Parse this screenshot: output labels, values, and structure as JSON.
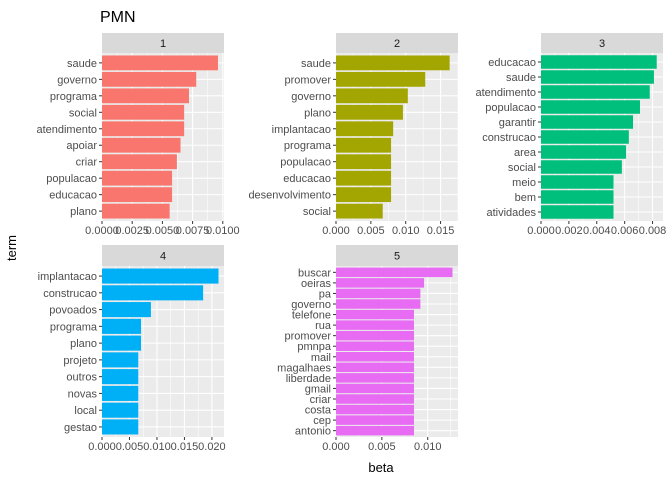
{
  "chart_data": {
    "type": "bar",
    "orientation": "horizontal",
    "title": "PMN",
    "xlabel": "beta",
    "ylabel": "term",
    "facet_layout": "3 columns x 2 rows, free scales",
    "grid": true,
    "legend": "none",
    "panels": [
      {
        "facet": "1",
        "color": "#F8766D",
        "xlim": [
          0,
          0.0101
        ],
        "xticks": [
          "0.0000",
          "0.0025",
          "0.0050",
          "0.0075",
          "0.0100"
        ],
        "xtick_values": [
          0,
          0.0025,
          0.005,
          0.0075,
          0.01
        ],
        "categories": [
          "saude",
          "governo",
          "programa",
          "social",
          "atendimento",
          "apoiar",
          "criar",
          "populacao",
          "educacao",
          "plano"
        ],
        "values": [
          0.0096,
          0.0078,
          0.0072,
          0.0068,
          0.0068,
          0.0065,
          0.0062,
          0.0058,
          0.0058,
          0.0056
        ]
      },
      {
        "facet": "2",
        "color": "#A3A500",
        "xlim": [
          0,
          0.0175
        ],
        "xticks": [
          "0.000",
          "0.005",
          "0.010",
          "0.015"
        ],
        "xtick_values": [
          0,
          0.005,
          0.01,
          0.015
        ],
        "categories": [
          "saude",
          "promover",
          "governo",
          "plano",
          "implantacao",
          "programa",
          "populacao",
          "educacao",
          "desenvolvimento",
          "social"
        ],
        "values": [
          0.0163,
          0.0128,
          0.0103,
          0.0096,
          0.0082,
          0.0079,
          0.0079,
          0.0079,
          0.0079,
          0.0067
        ]
      },
      {
        "facet": "3",
        "color": "#00BF7D",
        "xlim": [
          0,
          0.00875
        ],
        "xticks": [
          "0.000",
          "0.002",
          "0.004",
          "0.006",
          "0.008"
        ],
        "xtick_values": [
          0,
          0.002,
          0.004,
          0.006,
          0.008
        ],
        "categories": [
          "educacao",
          "saude",
          "atendimento",
          "populacao",
          "garantir",
          "construcao",
          "area",
          "social",
          "meio",
          "bem",
          "atividades"
        ],
        "values": [
          0.0083,
          0.0081,
          0.0078,
          0.0071,
          0.0066,
          0.0063,
          0.0061,
          0.0058,
          0.0052,
          0.0052,
          0.0052
        ]
      },
      {
        "facet": "4",
        "color": "#00B0F6",
        "xlim": [
          0,
          0.0222
        ],
        "xticks": [
          "0.000",
          "0.005",
          "0.010",
          "0.015",
          "0.020"
        ],
        "xtick_values": [
          0,
          0.005,
          0.01,
          0.015,
          0.02
        ],
        "categories": [
          "implantacao",
          "construcao",
          "povoados",
          "programa",
          "plano",
          "projeto",
          "outros",
          "novas",
          "local",
          "gestao"
        ],
        "values": [
          0.0212,
          0.0184,
          0.0089,
          0.0071,
          0.0071,
          0.0066,
          0.0066,
          0.0066,
          0.0066,
          0.0066
        ]
      },
      {
        "facet": "5",
        "color": "#E76BF3",
        "xlim": [
          0,
          0.0133
        ],
        "xticks": [
          "0.000",
          "0.005",
          "0.010"
        ],
        "xtick_values": [
          0,
          0.005,
          0.01
        ],
        "categories": [
          "buscar",
          "oeiras",
          "pa",
          "governo",
          "telefone",
          "rua",
          "promover",
          "pmnpa",
          "mail",
          "magalhaes",
          "liberdade",
          "gmail",
          "criar",
          "costa",
          "cep",
          "antonio"
        ],
        "values": [
          0.0127,
          0.0096,
          0.0092,
          0.0092,
          0.0085,
          0.0085,
          0.0085,
          0.0085,
          0.0085,
          0.0085,
          0.0085,
          0.0085,
          0.0085,
          0.0085,
          0.0085,
          0.0085
        ]
      }
    ]
  }
}
